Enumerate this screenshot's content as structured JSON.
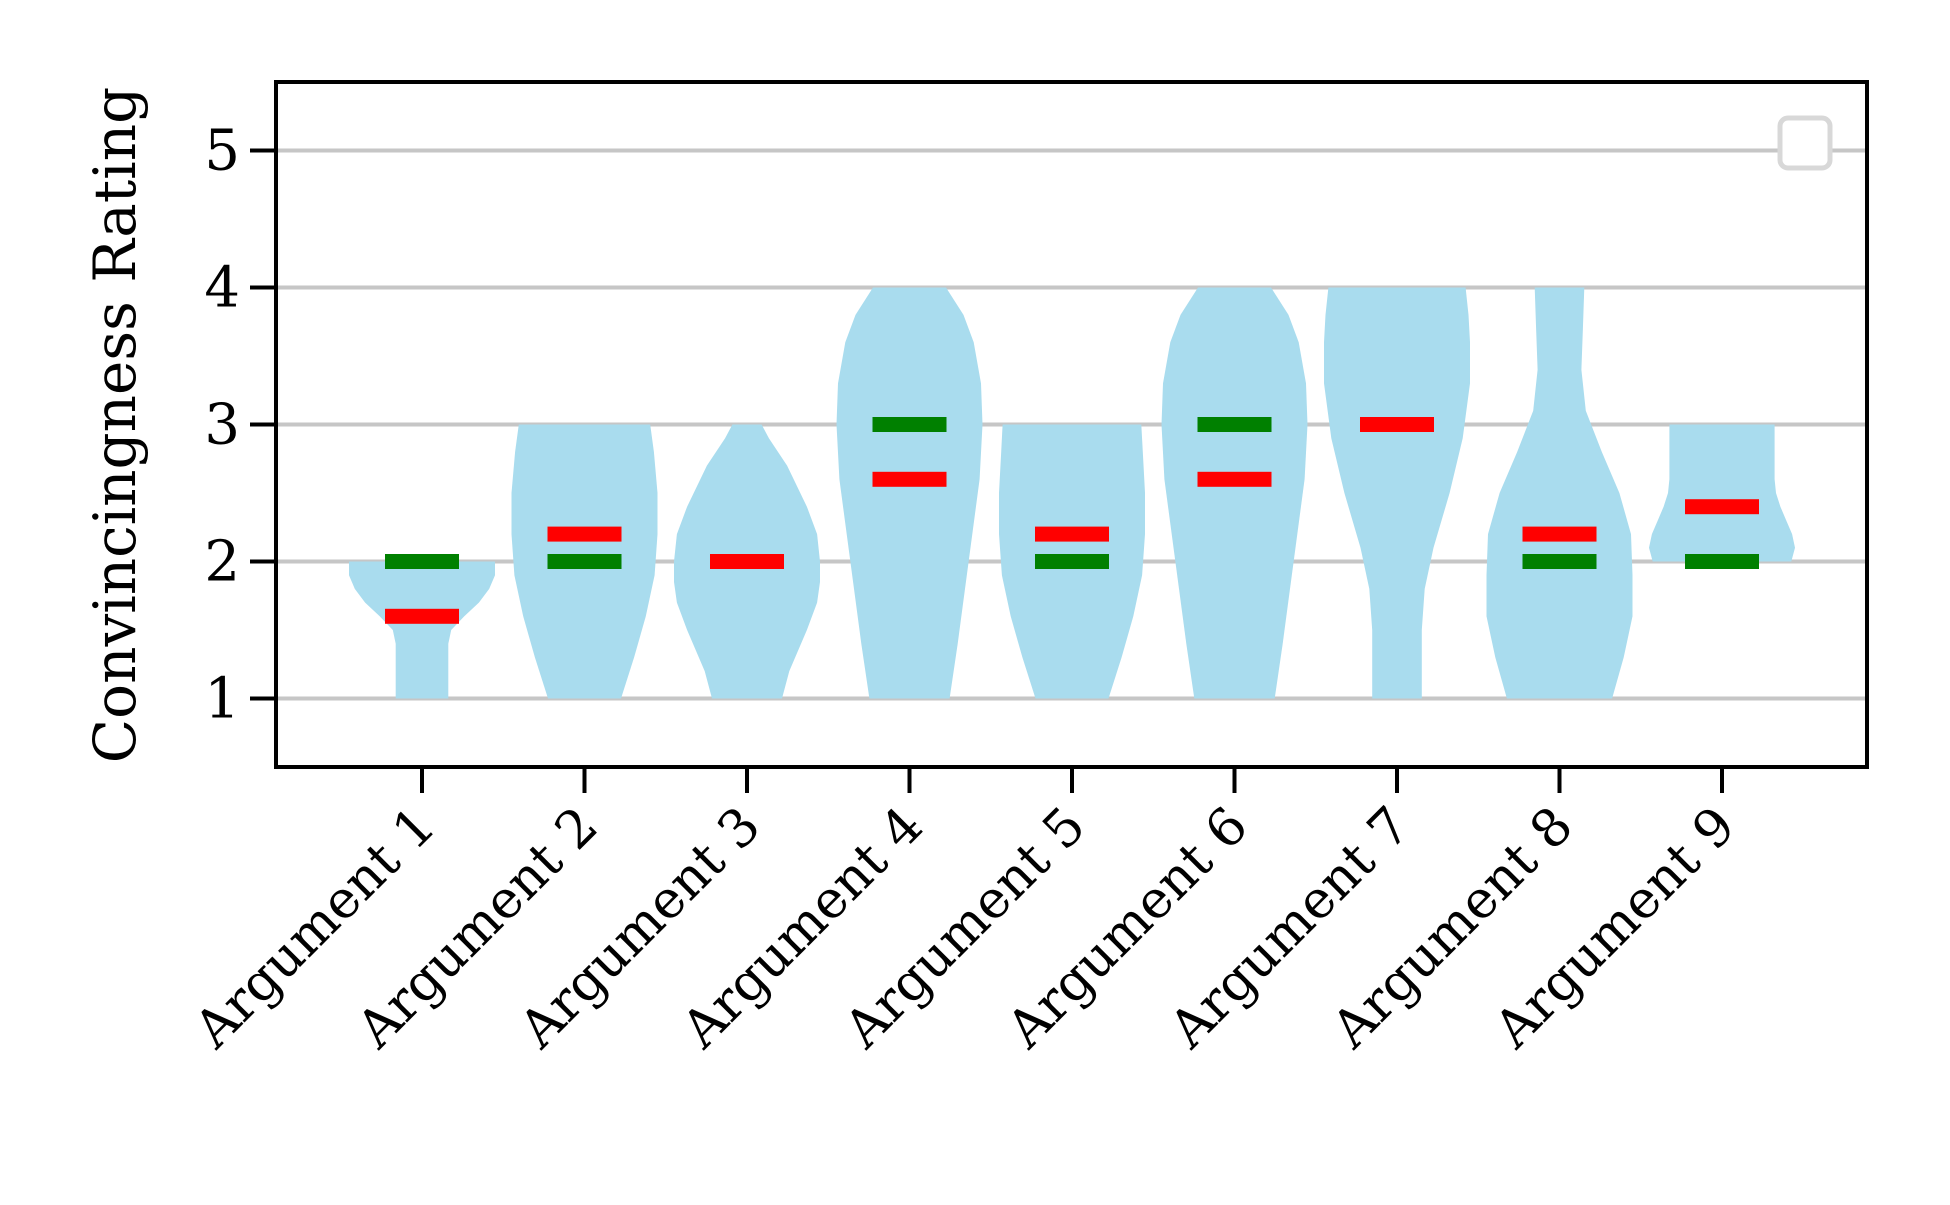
{
  "chart_data": {
    "type": "violin",
    "ylabel": "Convincingness Rating",
    "xlabel": "",
    "ylim": [
      0.5,
      5.5
    ],
    "yticks": [
      1,
      2,
      3,
      4,
      5
    ],
    "grid": "y",
    "legend": "top-right (empty box)",
    "categories": [
      "Argument 1",
      "Argument 2",
      "Argument 3",
      "Argument 4",
      "Argument 5",
      "Argument 6",
      "Argument 7",
      "Argument 8",
      "Argument 9"
    ],
    "violins": [
      {
        "min": 1,
        "max": 2,
        "mean": 1.6,
        "median": 2,
        "profile": [
          [
            1.0,
            0.36
          ],
          [
            1.2,
            0.36
          ],
          [
            1.4,
            0.36
          ],
          [
            1.5,
            0.4
          ],
          [
            1.6,
            0.58
          ],
          [
            1.7,
            0.78
          ],
          [
            1.8,
            0.92
          ],
          [
            1.9,
            1.0
          ],
          [
            2.0,
            1.0
          ]
        ]
      },
      {
        "min": 1,
        "max": 3,
        "mean": 2.2,
        "median": 2,
        "profile": [
          [
            1.0,
            0.5
          ],
          [
            1.3,
            0.68
          ],
          [
            1.6,
            0.84
          ],
          [
            1.9,
            0.96
          ],
          [
            2.2,
            1.0
          ],
          [
            2.5,
            1.0
          ],
          [
            2.8,
            0.95
          ],
          [
            3.0,
            0.9
          ]
        ]
      },
      {
        "min": 1,
        "max": 3,
        "mean": 2,
        "median": 2,
        "profile": [
          [
            1.0,
            0.48
          ],
          [
            1.2,
            0.58
          ],
          [
            1.5,
            0.82
          ],
          [
            1.7,
            0.96
          ],
          [
            1.85,
            1.0
          ],
          [
            2.0,
            1.0
          ],
          [
            2.2,
            0.96
          ],
          [
            2.4,
            0.82
          ],
          [
            2.7,
            0.55
          ],
          [
            2.9,
            0.3
          ],
          [
            3.0,
            0.2
          ]
        ]
      },
      {
        "min": 1,
        "max": 4,
        "mean": 2.6,
        "median": 3,
        "profile": [
          [
            1.0,
            0.55
          ],
          [
            1.4,
            0.66
          ],
          [
            1.8,
            0.76
          ],
          [
            2.2,
            0.86
          ],
          [
            2.6,
            0.96
          ],
          [
            3.0,
            1.0
          ],
          [
            3.3,
            0.98
          ],
          [
            3.6,
            0.88
          ],
          [
            3.8,
            0.74
          ],
          [
            4.0,
            0.5
          ]
        ]
      },
      {
        "min": 1,
        "max": 3,
        "mean": 2.2,
        "median": 2,
        "profile": [
          [
            1.0,
            0.5
          ],
          [
            1.3,
            0.68
          ],
          [
            1.6,
            0.84
          ],
          [
            1.9,
            0.96
          ],
          [
            2.2,
            1.0
          ],
          [
            2.5,
            1.0
          ],
          [
            2.8,
            0.97
          ],
          [
            3.0,
            0.95
          ]
        ]
      },
      {
        "min": 1,
        "max": 4,
        "mean": 2.6,
        "median": 3,
        "profile": [
          [
            1.0,
            0.55
          ],
          [
            1.4,
            0.66
          ],
          [
            1.8,
            0.76
          ],
          [
            2.2,
            0.86
          ],
          [
            2.6,
            0.96
          ],
          [
            3.0,
            1.0
          ],
          [
            3.3,
            0.98
          ],
          [
            3.6,
            0.88
          ],
          [
            3.8,
            0.74
          ],
          [
            4.0,
            0.5
          ]
        ]
      },
      {
        "min": 1,
        "max": 4,
        "mean": 3,
        "median": 3,
        "profile": [
          [
            1.0,
            0.34
          ],
          [
            1.5,
            0.34
          ],
          [
            1.8,
            0.38
          ],
          [
            2.1,
            0.5
          ],
          [
            2.5,
            0.72
          ],
          [
            2.9,
            0.9
          ],
          [
            3.3,
            1.0
          ],
          [
            3.6,
            1.0
          ],
          [
            3.8,
            0.98
          ],
          [
            4.0,
            0.94
          ]
        ]
      },
      {
        "min": 1,
        "max": 4,
        "mean": 2.2,
        "median": 2,
        "profile": [
          [
            1.0,
            0.72
          ],
          [
            1.3,
            0.88
          ],
          [
            1.6,
            1.0
          ],
          [
            1.9,
            1.0
          ],
          [
            2.2,
            0.98
          ],
          [
            2.5,
            0.82
          ],
          [
            2.8,
            0.58
          ],
          [
            3.1,
            0.36
          ],
          [
            3.4,
            0.3
          ],
          [
            3.7,
            0.32
          ],
          [
            4.0,
            0.34
          ]
        ]
      },
      {
        "min": 2,
        "max": 3,
        "mean": 2.4,
        "median": 2,
        "profile": [
          [
            2.0,
            0.95
          ],
          [
            2.1,
            1.0
          ],
          [
            2.2,
            0.96
          ],
          [
            2.3,
            0.88
          ],
          [
            2.4,
            0.8
          ],
          [
            2.5,
            0.74
          ],
          [
            2.6,
            0.72
          ],
          [
            2.7,
            0.72
          ],
          [
            2.8,
            0.72
          ],
          [
            3.0,
            0.72
          ]
        ]
      }
    ],
    "colors": {
      "violin": "#a9dcee",
      "mean": "#ff0000",
      "median": "#008000",
      "grid": "#c6c6c6",
      "axis": "#000000",
      "legend_border": "#d8d8d8"
    }
  }
}
